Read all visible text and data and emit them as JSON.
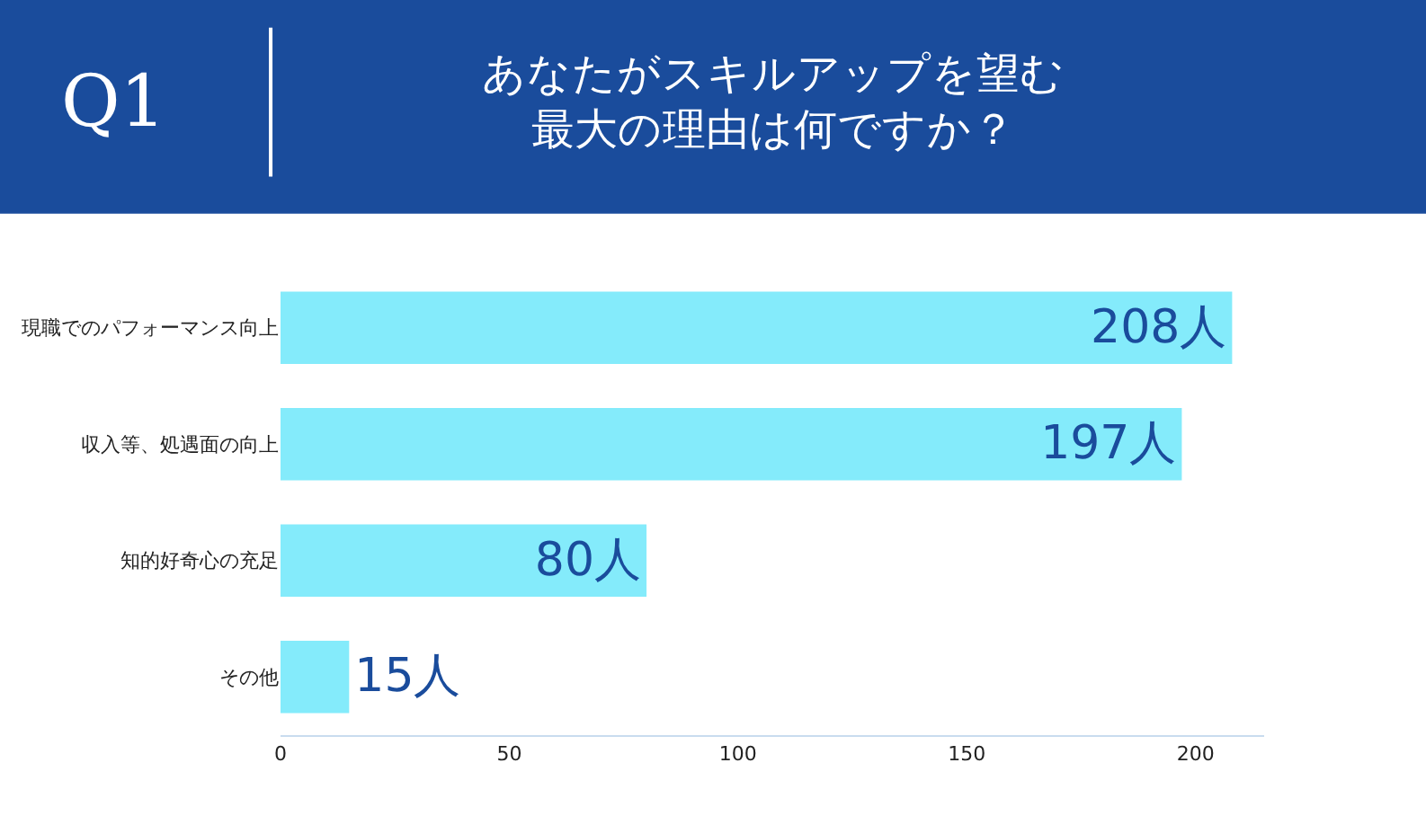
{
  "chart_data": {
    "type": "bar",
    "orientation": "horizontal",
    "title": "Q1",
    "subtitle": "あなたがスキルアップを望む",
    "annotations": [
      "最大の理由は何ですか？"
    ],
    "categories": [
      "現職でのパフォーマンス向上",
      "収入等、処遇面の向上",
      "知的好奇心の充足",
      "その他"
    ],
    "values": [
      208,
      197,
      80,
      15
    ],
    "value_labels": [
      "208人",
      "197人",
      "80人",
      "15人"
    ],
    "color": "#84ebfb",
    "xlim": [
      0,
      215
    ],
    "xticks": [
      0,
      50,
      100,
      150,
      200
    ],
    "grid": false,
    "legend": false
  }
}
